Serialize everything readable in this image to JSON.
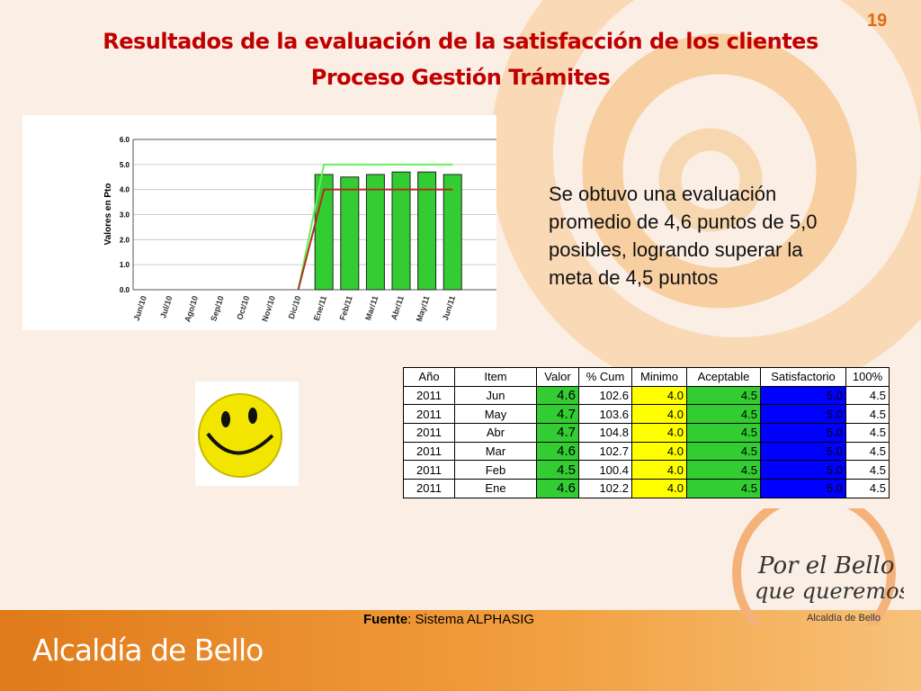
{
  "page_number": "19",
  "title": [
    "Resultados de la evaluación de la satisfacción de los clientes",
    "Proceso Gestión Trámites"
  ],
  "summary": [
    "Se obtuvo una evaluación",
    "promedio de 4,6 puntos de 5,0",
    "posibles, logrando superar la",
    "meta de 4,5 puntos"
  ],
  "chart_data": {
    "type": "bar",
    "ylabel": "Valores en Pto",
    "categories": [
      "Jun/10",
      "Jul/10",
      "Ago/10",
      "Sep/10",
      "Oct/10",
      "Nov/10",
      "Dic/10",
      "Ene/11",
      "Feb/11",
      "Mar/11",
      "Abr/11",
      "May/11",
      "Jun/11"
    ],
    "series": [
      {
        "type": "bar",
        "color": "#33cc33",
        "values": [
          null,
          null,
          null,
          null,
          null,
          null,
          null,
          4.6,
          4.5,
          4.6,
          4.7,
          4.7,
          4.6
        ]
      },
      {
        "type": "line",
        "color": "#66ee55",
        "values": [
          null,
          null,
          null,
          null,
          null,
          null,
          0,
          5,
          5,
          5,
          5,
          5,
          5
        ]
      },
      {
        "type": "line",
        "color": "#b03020",
        "values": [
          null,
          null,
          null,
          null,
          null,
          null,
          0,
          4,
          4,
          4,
          4,
          4,
          4
        ]
      }
    ],
    "ylim": [
      0,
      6
    ],
    "yticks": [
      {
        "value": 0,
        "label": "0.0"
      },
      {
        "value": 1,
        "label": "1.0"
      },
      {
        "value": 2,
        "label": "2.0"
      },
      {
        "value": 3,
        "label": "3.0"
      },
      {
        "value": 4,
        "label": "4.0"
      },
      {
        "value": 5,
        "label": "5.0"
      },
      {
        "value": 6,
        "label": "6.0"
      }
    ],
    "grid": true
  },
  "table": {
    "header": [
      "Año",
      "Item",
      "Valor",
      "% Cum",
      "Minimo",
      "Aceptable",
      "Satisfactorio",
      "100%"
    ],
    "rows": [
      [
        "2011",
        "Jun",
        "4.6",
        "102.6",
        "4.0",
        "4.5",
        "5.0",
        "4.5"
      ],
      [
        "2011",
        "May",
        "4.7",
        "103.6",
        "4.0",
        "4.5",
        "5.0",
        "4.5"
      ],
      [
        "2011",
        "Abr",
        "4.7",
        "104.8",
        "4.0",
        "4.5",
        "5.0",
        "4.5"
      ],
      [
        "2011",
        "Mar",
        "4.6",
        "102.7",
        "4.0",
        "4.5",
        "5.0",
        "4.5"
      ],
      [
        "2011",
        "Feb",
        "4.5",
        "100.4",
        "4.0",
        "4.5",
        "5.0",
        "4.5"
      ],
      [
        "2011",
        "Ene",
        "4.6",
        "102.2",
        "4.0",
        "4.5",
        "5.0",
        "4.5"
      ]
    ]
  },
  "source": {
    "label": "Fuente",
    "text": ": Sistema ALPHASIG"
  },
  "logo": {
    "line1": "Por el Bello",
    "line2": "que queremos",
    "line3": "Alcaldía de Bello"
  },
  "footer": "Alcaldía de Bello"
}
